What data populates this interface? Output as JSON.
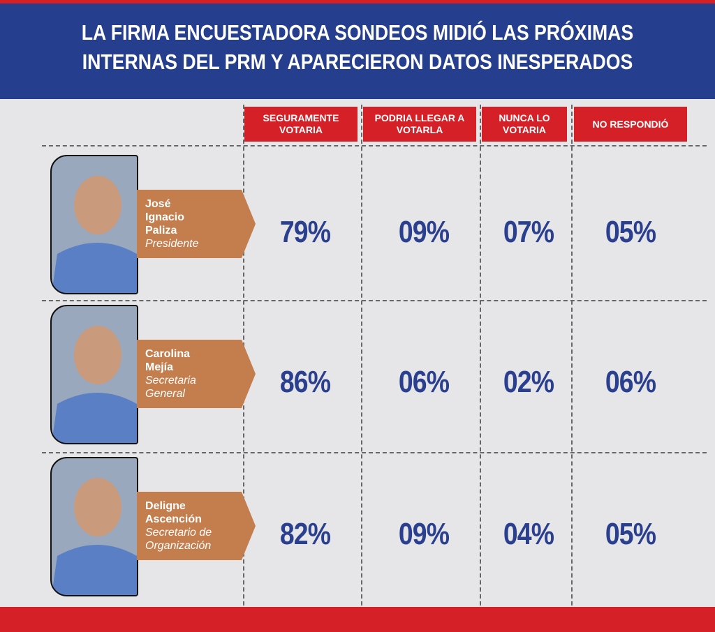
{
  "header": {
    "title": [
      "LA FIRMA ENCUESTADORA SONDEOS MIDIÓ LAS PRÓXIMAS",
      "INTERNAS DEL PRM Y APARECIERON DATOS INESPERADOS"
    ]
  },
  "table": {
    "columns": [
      [
        "SEGURAMENTE",
        "VOTARIA"
      ],
      [
        "PODRIA LLEGAR A",
        "VOTARLA"
      ],
      [
        "NUNCA LO",
        "VOTARIA"
      ],
      [
        "NO RESPONDIÓ"
      ]
    ],
    "rows": [
      {
        "name": [
          "José",
          "Ignacio",
          "Paliza"
        ],
        "role": [
          "Presidente"
        ],
        "values": [
          "79%",
          "09%",
          "07%",
          "05%"
        ]
      },
      {
        "name": [
          "Carolina",
          "Mejía"
        ],
        "role": [
          "Secretaria",
          "General"
        ],
        "values": [
          "86%",
          "06%",
          "02%",
          "06%"
        ]
      },
      {
        "name": [
          "Deligne",
          "Ascención"
        ],
        "role": [
          "Secretario de",
          "Organización"
        ],
        "values": [
          "82%",
          "09%",
          "04%",
          "05%"
        ]
      }
    ]
  }
}
